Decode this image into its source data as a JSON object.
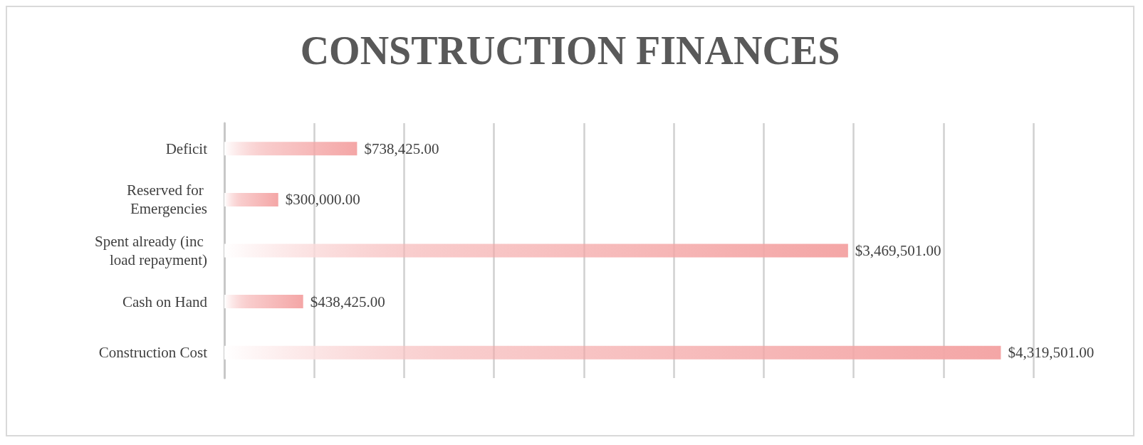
{
  "chart_data": {
    "type": "bar",
    "orientation": "horizontal",
    "title": "CONSTRUCTION FINANCES",
    "categories": [
      "Deficit",
      "Reserved for Emergencies",
      "Spent already (inc load repayment)",
      "Cash on Hand",
      "Construction Cost"
    ],
    "values": [
      738425,
      300000,
      3469501,
      438425,
      4319501
    ],
    "value_labels": [
      "$738,425.00",
      "$300,000.00",
      "$3,469,501.00",
      "$438,425.00",
      "$4,319,501.00"
    ],
    "color": "#f4a6a6",
    "xlim": [
      0,
      4500000
    ],
    "xticks": [
      {
        "value": 0,
        "label": null
      },
      {
        "value": 500000,
        "label": null
      },
      {
        "value": 1000000,
        "label": null
      },
      {
        "value": 1500000,
        "label": null
      },
      {
        "value": 2000000,
        "label": null
      },
      {
        "value": 2500000,
        "label": null
      },
      {
        "value": 3000000,
        "label": null
      },
      {
        "value": 3500000,
        "label": null
      },
      {
        "value": 4000000,
        "label": null
      },
      {
        "value": 4500000,
        "label": null
      }
    ],
    "tick_labels": "y",
    "grid": "x"
  }
}
